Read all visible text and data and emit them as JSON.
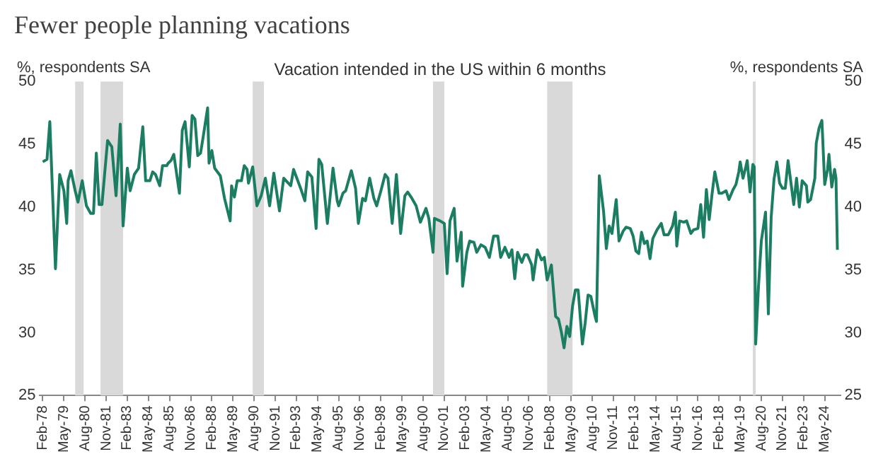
{
  "chart_data": {
    "type": "line",
    "title": "Fewer people planning vacations",
    "subtitle": "Vacation intended in the US within 6 months",
    "ylabel": "%, respondents SA",
    "y2label": "%, respondents SA",
    "color": "#1b7d62",
    "legend": false,
    "grid": false,
    "x": [
      "1978-02",
      "1978-05",
      "1978-07",
      "1978-11",
      "1979-02",
      "1979-05",
      "1979-07",
      "1979-08",
      "1979-10",
      "1980-01",
      "1980-03",
      "1980-06",
      "1980-09",
      "1980-12",
      "1981-02",
      "1981-04",
      "1981-06",
      "1981-08",
      "1981-12",
      "1982-03",
      "1982-06",
      "1982-09",
      "1982-11",
      "1983-02",
      "1983-04",
      "1983-07",
      "1983-10",
      "1984-01",
      "1984-03",
      "1984-06",
      "1984-08",
      "1984-10",
      "1985-01",
      "1985-03",
      "1985-06",
      "1985-07",
      "1985-09",
      "1985-11",
      "1986-03",
      "1986-05",
      "1986-07",
      "1986-10",
      "1986-12",
      "1987-02",
      "1987-04",
      "1987-06",
      "1987-08",
      "1987-11",
      "1987-12",
      "1988-02",
      "1988-04",
      "1988-08",
      "1988-11",
      "1989-03",
      "1989-04",
      "1989-06",
      "1989-08",
      "1989-11",
      "1990-01",
      "1990-03",
      "1990-04",
      "1990-07",
      "1990-10",
      "1991-01",
      "1991-04",
      "1991-07",
      "1991-10",
      "1992-02",
      "1992-05",
      "1992-10",
      "1992-12",
      "1993-05",
      "1993-08",
      "1993-10",
      "1994-01",
      "1994-04",
      "1994-06",
      "1994-08",
      "1994-12",
      "1995-04",
      "1995-07",
      "1995-08",
      "1995-11",
      "1996-01",
      "1996-05",
      "1996-08",
      "1996-10",
      "1997-01",
      "1997-03",
      "1997-06",
      "1997-09",
      "1997-11",
      "1998-02",
      "1998-05",
      "1998-07",
      "1998-10",
      "1999-01",
      "1999-04",
      "1999-07",
      "1999-09",
      "1999-12",
      "2000-03",
      "2000-06",
      "2000-10",
      "2000-12",
      "2001-03",
      "2001-04",
      "2001-08",
      "2001-11",
      "2002-01",
      "2002-03",
      "2002-06",
      "2002-08",
      "2002-11",
      "2002-12",
      "2003-03",
      "2003-05",
      "2003-08",
      "2003-10",
      "2004-01",
      "2004-04",
      "2004-07",
      "2004-10",
      "2005-01",
      "2005-03",
      "2005-06",
      "2005-09",
      "2005-11",
      "2006-01",
      "2006-03",
      "2006-06",
      "2006-08",
      "2006-10",
      "2007-01",
      "2007-02",
      "2007-05",
      "2007-08",
      "2007-10",
      "2007-12",
      "2008-03",
      "2008-06",
      "2008-08",
      "2008-10",
      "2008-12",
      "2009-02",
      "2009-04",
      "2009-06",
      "2009-08",
      "2009-10",
      "2010-01",
      "2010-03",
      "2010-05",
      "2010-07",
      "2010-10",
      "2010-11",
      "2011-01",
      "2011-04",
      "2011-06",
      "2011-08",
      "2011-10",
      "2012-01",
      "2012-03",
      "2012-06",
      "2012-08",
      "2012-11",
      "2013-01",
      "2013-03",
      "2013-05",
      "2013-07",
      "2013-09",
      "2013-11",
      "2014-01",
      "2014-03",
      "2014-06",
      "2014-09",
      "2014-11",
      "2015-02",
      "2015-05",
      "2015-07",
      "2015-08",
      "2015-10",
      "2016-01",
      "2016-03",
      "2016-06",
      "2016-08",
      "2016-11",
      "2017-01",
      "2017-03",
      "2017-05",
      "2017-07",
      "2017-09",
      "2017-11",
      "2018-02",
      "2018-04",
      "2018-07",
      "2018-09",
      "2018-12",
      "2019-02",
      "2019-04",
      "2019-05",
      "2019-07",
      "2019-09",
      "2019-10",
      "2019-12",
      "2020-02",
      "2020-03",
      "2020-04",
      "2020-06",
      "2020-08",
      "2020-11",
      "2021-01",
      "2021-03",
      "2021-05",
      "2021-07",
      "2021-09",
      "2021-11",
      "2022-01",
      "2022-03",
      "2022-06",
      "2022-07",
      "2022-09",
      "2022-11",
      "2023-01",
      "2023-04",
      "2023-05",
      "2023-07",
      "2023-10",
      "2023-11",
      "2024-01",
      "2024-03",
      "2024-05",
      "2024-07",
      "2024-08",
      "2024-10",
      "2024-12",
      "2025-01",
      "2025-02"
    ],
    "values": [
      43.6,
      43.8,
      46.8,
      35.1,
      42.6,
      41.3,
      38.7,
      42.1,
      42.9,
      41.3,
      40.4,
      42.1,
      40.1,
      39.5,
      39.5,
      44.3,
      40.2,
      40.2,
      45.3,
      44.8,
      40.9,
      46.6,
      38.5,
      43.1,
      41.3,
      42.6,
      43.1,
      46.4,
      42.1,
      42.1,
      42.8,
      42.6,
      41.7,
      43.3,
      43.3,
      43.5,
      43.7,
      44.2,
      41.1,
      46.1,
      46.8,
      43.2,
      47.3,
      47.0,
      44.1,
      44.3,
      45.7,
      47.9,
      43.5,
      44.5,
      43.1,
      42.5,
      40.7,
      38.9,
      41.7,
      40.8,
      42.1,
      42.1,
      43.3,
      43.0,
      41.9,
      43.2,
      40.1,
      40.9,
      42.3,
      40.1,
      42.7,
      39.7,
      42.3,
      41.7,
      43.0,
      41.5,
      40.5,
      42.8,
      42.4,
      38.3,
      43.8,
      43.4,
      38.7,
      43.1,
      40.5,
      40.1,
      41.1,
      41.3,
      42.9,
      41.5,
      38.7,
      40.7,
      40.5,
      42.3,
      40.7,
      40.1,
      41.3,
      42.6,
      42.3,
      38.7,
      42.6,
      37.9,
      40.9,
      41.2,
      40.7,
      40.1,
      38.8,
      39.9,
      39.1,
      36.4,
      39.1,
      38.9,
      38.7,
      34.7,
      38.9,
      39.9,
      35.7,
      38.0,
      33.7,
      36.4,
      37.3,
      37.2,
      36.4,
      37.0,
      36.8,
      36.0,
      37.7,
      37.7,
      36.0,
      36.8,
      36.0,
      36.6,
      34.3,
      36.4,
      35.6,
      36.2,
      36.2,
      35.4,
      34.2,
      36.6,
      35.8,
      36.0,
      34.2,
      35.4,
      31.3,
      31.1,
      30.1,
      28.8,
      30.5,
      29.7,
      32.1,
      33.4,
      33.4,
      29.1,
      30.8,
      33.0,
      32.9,
      31.3,
      30.9,
      42.5,
      39.7,
      36.7,
      38.5,
      37.9,
      40.6,
      37.3,
      38.1,
      38.4,
      38.3,
      37.7,
      36.5,
      36.3,
      38.0,
      37.1,
      37.3,
      35.9,
      37.5,
      38.2,
      38.7,
      37.8,
      37.8,
      38.5,
      39.6,
      36.9,
      38.9,
      38.8,
      38.9,
      37.9,
      38.2,
      38.3,
      40.2,
      37.6,
      41.4,
      39.0,
      41.0,
      42.8,
      41.1,
      41.1,
      41.3,
      40.6,
      41.4,
      41.8,
      42.8,
      43.6,
      42.3,
      43.2,
      43.7,
      41.2,
      43.4,
      43.2,
      29.1,
      33.7,
      37.3,
      39.6,
      31.5,
      39.2,
      42.2,
      43.6,
      41.9,
      41.5,
      41.5,
      43.7,
      41.1,
      40.2,
      42.3,
      40.0,
      42.1,
      41.7,
      40.4,
      40.6,
      42.3,
      45.1,
      46.3,
      46.9,
      41.8,
      43.0,
      44.2,
      41.6,
      43.0,
      42.3,
      36.6
    ],
    "xlim": [
      "1977-12",
      "2025-04"
    ],
    "xticks": [
      {
        "value": "1978-02",
        "label": "Feb-78"
      },
      {
        "value": "1979-05",
        "label": "May-79"
      },
      {
        "value": "1980-08",
        "label": "Aug-80"
      },
      {
        "value": "1981-11",
        "label": "Nov-81"
      },
      {
        "value": "1983-02",
        "label": "Feb-83"
      },
      {
        "value": "1984-05",
        "label": "May-84"
      },
      {
        "value": "1985-08",
        "label": "Aug-85"
      },
      {
        "value": "1986-11",
        "label": "Nov-86"
      },
      {
        "value": "1988-02",
        "label": "Feb-88"
      },
      {
        "value": "1989-05",
        "label": "May-89"
      },
      {
        "value": "1990-08",
        "label": "Aug-90"
      },
      {
        "value": "1991-11",
        "label": "Nov-91"
      },
      {
        "value": "1993-02",
        "label": "Feb-93"
      },
      {
        "value": "1994-05",
        "label": "May-94"
      },
      {
        "value": "1995-08",
        "label": "Aug-95"
      },
      {
        "value": "1996-11",
        "label": "Nov-96"
      },
      {
        "value": "1998-02",
        "label": "Feb-98"
      },
      {
        "value": "1999-05",
        "label": "May-99"
      },
      {
        "value": "2000-08",
        "label": "Aug-00"
      },
      {
        "value": "2001-11",
        "label": "Nov-01"
      },
      {
        "value": "2003-02",
        "label": "Feb-03"
      },
      {
        "value": "2004-05",
        "label": "May-04"
      },
      {
        "value": "2005-08",
        "label": "Aug-05"
      },
      {
        "value": "2006-11",
        "label": "Nov-06"
      },
      {
        "value": "2008-02",
        "label": "Feb-08"
      },
      {
        "value": "2009-05",
        "label": "May-09"
      },
      {
        "value": "2010-08",
        "label": "Aug-10"
      },
      {
        "value": "2011-11",
        "label": "Nov-11"
      },
      {
        "value": "2013-02",
        "label": "Feb-13"
      },
      {
        "value": "2014-05",
        "label": "May-14"
      },
      {
        "value": "2015-08",
        "label": "Aug-15"
      },
      {
        "value": "2016-11",
        "label": "Nov-16"
      },
      {
        "value": "2018-02",
        "label": "Feb-18"
      },
      {
        "value": "2019-05",
        "label": "May-19"
      },
      {
        "value": "2020-08",
        "label": "Aug-20"
      },
      {
        "value": "2021-11",
        "label": "Nov-21"
      },
      {
        "value": "2023-02",
        "label": "Feb-23"
      },
      {
        "value": "2024-05",
        "label": "May-24"
      }
    ],
    "ylim": [
      25,
      50
    ],
    "yticks": [
      25,
      30,
      35,
      40,
      45,
      50
    ],
    "y2lim": [
      25,
      50
    ],
    "y2ticks": [
      25,
      30,
      35,
      40,
      45,
      50
    ],
    "bands": [
      {
        "axis": "x",
        "from": "1980-01",
        "to": "1980-07",
        "color": "#d9d9d9"
      },
      {
        "axis": "x",
        "from": "1981-07",
        "to": "1982-11",
        "color": "#d9d9d9"
      },
      {
        "axis": "x",
        "from": "1990-07",
        "to": "1991-03",
        "color": "#d9d9d9"
      },
      {
        "axis": "x",
        "from": "2001-03",
        "to": "2001-11",
        "color": "#d9d9d9"
      },
      {
        "axis": "x",
        "from": "2007-12",
        "to": "2009-06",
        "color": "#d9d9d9"
      },
      {
        "axis": "x",
        "from": "2020-02",
        "to": "2020-04",
        "color": "#d9d9d9"
      }
    ]
  }
}
